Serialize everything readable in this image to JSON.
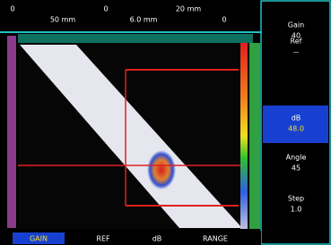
{
  "top_bar": {
    "labels": [
      "0",
      "50 mm",
      "0",
      "6.0 mm",
      "20 mm",
      "0"
    ]
  },
  "side_panel": {
    "items": [
      {
        "label": "Gain",
        "value": "40"
      },
      {
        "label": "Ref",
        "value": "--"
      },
      {
        "label": "dB",
        "value": "48.0"
      },
      {
        "label": "Angle",
        "value": "45"
      },
      {
        "label": "Step",
        "value": "1.0"
      }
    ]
  },
  "bottom_bar": {
    "labels": [
      "GAIN",
      "REF",
      "dB",
      "RANGE"
    ]
  }
}
